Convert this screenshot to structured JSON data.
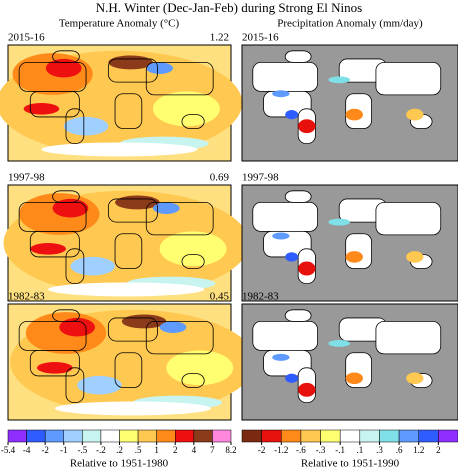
{
  "title": "N.H. Winter (Dec-Jan-Feb) during Strong El Ninos",
  "temperature": {
    "header": "Temperature Anomaly (°C)",
    "maps": [
      {
        "label": "2015-16",
        "value": 1.22
      },
      {
        "label": "1997-98",
        "value": 0.69
      },
      {
        "label": "1982-83",
        "value": 0.45
      }
    ],
    "colorbar": {
      "ticks": [
        -5.4,
        -4,
        -2,
        -1,
        {
          "value": -0.5,
          "label": "-.5"
        },
        {
          "value": -0.2,
          "label": "-.2"
        },
        {
          "value": 0.2,
          "label": ".2"
        },
        {
          "value": 0.5,
          "label": ".5"
        },
        1,
        2,
        4,
        7,
        8.2
      ],
      "colors": [
        "#8f2fff",
        "#2f5cff",
        "#5f9bff",
        "#9fd0ff",
        "#c8f4ef",
        "#ffffff",
        "#ffff70",
        "#ffc850",
        "#ff8a1a",
        "#ee1010",
        "#8b3a1a",
        "#ff88dd"
      ]
    },
    "note": "Relative to 1951-1980"
  },
  "precipitation": {
    "header": "Precipitation Anomaly (mm/day)",
    "maps": [
      {
        "label": "2015-16"
      },
      {
        "label": "1997-98"
      },
      {
        "label": "1982-83"
      }
    ],
    "colorbar": {
      "ticks": [
        -2,
        {
          "value": -1.2,
          "label": "-1.2"
        },
        {
          "value": -0.6,
          "label": "-.6"
        },
        {
          "value": -0.3,
          "label": "-.3"
        },
        {
          "value": -0.1,
          "label": "-.1"
        },
        {
          "value": 0.1,
          "label": ".1"
        },
        {
          "value": 0.3,
          "label": ".3"
        },
        {
          "value": 0.6,
          "label": ".6"
        },
        {
          "value": 1.2,
          "label": "1.2"
        },
        2
      ],
      "colors": [
        "#7a2a10",
        "#e8100a",
        "#ff8a1a",
        "#ffc850",
        "#ffff70",
        "#ffffff",
        "#c8f4ef",
        "#7fe0e8",
        "#5f9bff",
        "#2f5cff",
        "#8f2fff"
      ]
    },
    "note": "Relative to 1951-1990"
  }
}
